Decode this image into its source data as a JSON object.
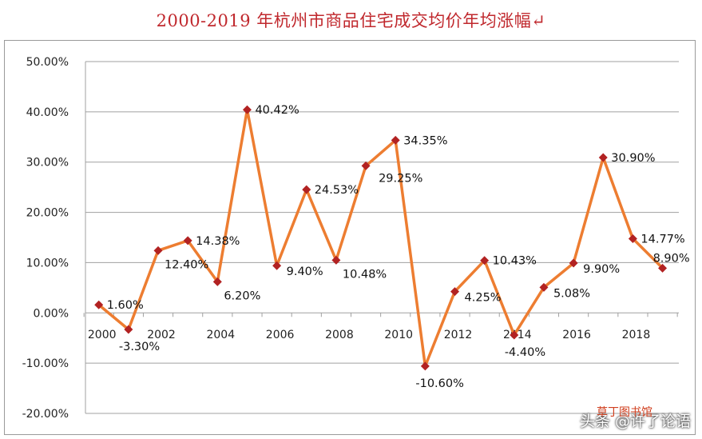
{
  "title": "2000-2019 年杭州市商品住宅成交均价年均涨幅↵",
  "watermark": "头条 @许了论语",
  "watermark_sub": "草丁图书馆",
  "colors": {
    "line": "#ed7d31",
    "marker": "#b22222",
    "grid": "#a0a0a0",
    "title": "#c0282d"
  },
  "chart_data": {
    "type": "line",
    "title": "2000-2019 年杭州市商品住宅成交均价年均涨幅↵",
    "xlabel": "",
    "ylabel": "",
    "ylim": [
      -20,
      50
    ],
    "grid": true,
    "x_tick_labels": [
      "2000",
      "2002",
      "2004",
      "2006",
      "2008",
      "2010",
      "2012",
      "2014",
      "2016",
      "2018"
    ],
    "y_tick_labels": [
      "50.00%",
      "40.00%",
      "30.00%",
      "20.00%",
      "10.00%",
      "0.00%",
      "-10.00%",
      "-20.00%"
    ],
    "series": [
      {
        "x": [
          2000,
          2001,
          2002,
          2003,
          2004,
          2005,
          2006,
          2007,
          2008,
          2009,
          2010,
          2011,
          2012,
          2013,
          2014,
          2015,
          2016,
          2017,
          2018,
          2019
        ],
        "values": [
          1.6,
          -3.3,
          12.4,
          14.38,
          6.2,
          40.42,
          9.4,
          24.53,
          10.48,
          29.25,
          34.35,
          -10.6,
          4.25,
          10.43,
          -4.4,
          5.08,
          9.9,
          30.9,
          14.77,
          8.9
        ],
        "labels": [
          "1.60%",
          "-3.30%",
          "12.40%",
          "14.38%",
          "6.20%",
          "40.42%",
          "9.40%",
          "24.53%",
          "10.48%",
          "29.25%",
          "34.35%",
          "-10.60%",
          "4.25%",
          "10.43%",
          "-4.40%",
          "5.08%",
          "9.90%",
          "30.90%",
          "14.77%",
          "8.90%"
        ]
      }
    ]
  }
}
